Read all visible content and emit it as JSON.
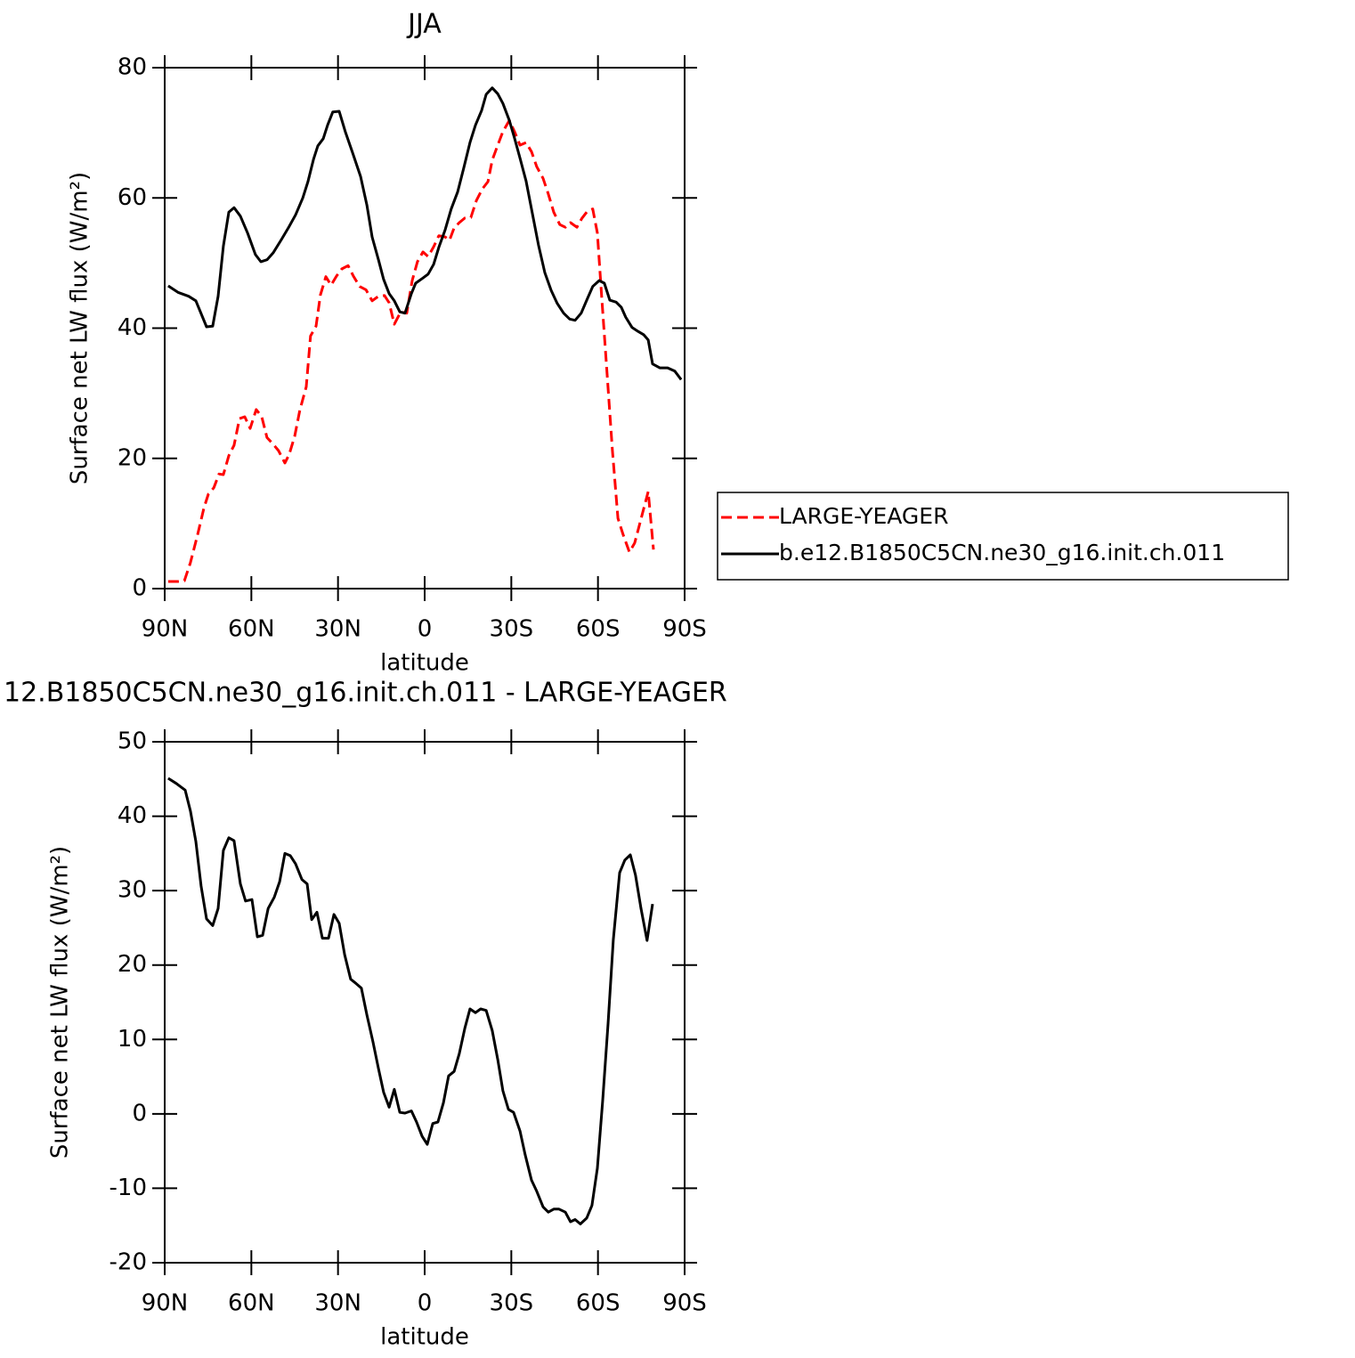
{
  "chart_data": [
    {
      "type": "line",
      "title": "JJA",
      "x_label": "latitude",
      "y_label": "Surface net LW flux (W/m²)",
      "xlim": [
        90,
        -90
      ],
      "xticks": [
        {
          "value": 90,
          "label": "90N"
        },
        {
          "value": 60,
          "label": "60N"
        },
        {
          "value": 30,
          "label": "30N"
        },
        0,
        {
          "value": -30,
          "label": "30S"
        },
        {
          "value": -60,
          "label": "60S"
        },
        {
          "value": -90,
          "label": "90S"
        }
      ],
      "ylim": [
        0,
        80
      ],
      "yticks": [
        0,
        20,
        40,
        60,
        80
      ],
      "legend": "right",
      "series": [
        {
          "name": "LARGE-YEAGER",
          "color": "#ff0000",
          "dash": "dashed",
          "x": [
            88.8,
            85.4,
            83.2,
            81.1,
            78.6,
            76.4,
            74.9,
            73.0,
            71.2,
            69.7,
            67.8,
            66.0,
            64.1,
            62.3,
            60.4,
            58.3,
            56.4,
            54.6,
            52.7,
            50.6,
            48.4,
            46.9,
            45.0,
            43.2,
            41.0,
            39.5,
            37.6,
            36.1,
            34.2,
            32.4,
            30.5,
            28.7,
            26.5,
            24.7,
            22.5,
            20.3,
            18.2,
            16.0,
            13.9,
            12.3,
            10.5,
            8.3,
            6.2,
            4.3,
            2.5,
            0.6,
            -1.2,
            -3.1,
            -4.9,
            -7.1,
            -8.6,
            -10.2,
            -12.0,
            -13.9,
            -16.0,
            -17.9,
            -20.0,
            -21.9,
            -23.4,
            -25.3,
            -27.1,
            -29.3,
            -31.1,
            -33.0,
            -35.1,
            -37.0,
            -38.8,
            -41.0,
            -42.8,
            -44.7,
            -46.8,
            -48.7,
            -50.5,
            -52.7,
            -54.5,
            -56.4,
            -58.2,
            -59.8,
            -61.3,
            -63.2,
            -65.0,
            -66.9,
            -68.7,
            -70.9,
            -72.7,
            -74.3,
            -75.8,
            -77.4,
            -79.2
          ],
          "values": [
            1.1,
            1.1,
            1.2,
            4.0,
            8.3,
            12.4,
            14.5,
            15.5,
            17.6,
            17.5,
            20.4,
            22.0,
            26.1,
            26.4,
            24.6,
            27.5,
            26.4,
            23.2,
            22.3,
            21.2,
            19.3,
            20.6,
            23.4,
            27.4,
            31.0,
            38.8,
            40.3,
            45.1,
            47.9,
            46.6,
            48.0,
            49.1,
            49.6,
            48.0,
            46.4,
            45.9,
            44.2,
            44.9,
            45.0,
            43.9,
            40.6,
            42.5,
            42.3,
            47.3,
            50.2,
            51.7,
            51.0,
            52.5,
            54.2,
            54.0,
            53.5,
            55.4,
            56.2,
            56.9,
            57.0,
            59.6,
            61.4,
            62.5,
            65.8,
            68.1,
            70.2,
            71.9,
            70.2,
            68.1,
            68.5,
            67.1,
            64.8,
            63.0,
            60.6,
            57.8,
            55.9,
            55.5,
            56.2,
            55.5,
            56.9,
            58.0,
            58.3,
            54.6,
            44.7,
            32.8,
            21.2,
            10.8,
            8.3,
            5.6,
            7.0,
            9.7,
            12.2,
            14.9,
            6.0
          ]
        },
        {
          "name": "b.e12.B1850C5CN.ne30_g16.init.ch.011",
          "color": "#000000",
          "dash": "solid",
          "x": [
            88.8,
            85.4,
            81.7,
            79.2,
            75.5,
            73.4,
            71.5,
            69.7,
            67.8,
            66.0,
            63.8,
            61.3,
            58.6,
            56.7,
            54.6,
            52.4,
            49.6,
            47.2,
            44.7,
            42.2,
            40.4,
            38.5,
            37.0,
            35.1,
            33.6,
            31.8,
            29.6,
            27.5,
            25.0,
            22.2,
            20.0,
            18.2,
            16.0,
            14.2,
            12.3,
            10.5,
            8.6,
            6.8,
            4.6,
            3.1,
            0.6,
            -1.2,
            -3.1,
            -4.9,
            -7.1,
            -9.2,
            -11.4,
            -13.6,
            -15.7,
            -17.6,
            -19.7,
            -21.3,
            -23.4,
            -25.3,
            -27.1,
            -29.3,
            -31.1,
            -33.0,
            -35.1,
            -37.3,
            -39.4,
            -41.6,
            -43.8,
            -45.9,
            -48.1,
            -50.2,
            -52.1,
            -54.2,
            -56.4,
            -58.2,
            -60.4,
            -62.2,
            -64.1,
            -66.3,
            -68.1,
            -69.6,
            -71.8,
            -73.9,
            -75.8,
            -77.4,
            -78.9,
            -81.4,
            -84.1,
            -86.6,
            -88.8
          ],
          "values": [
            46.5,
            45.5,
            44.9,
            44.2,
            40.2,
            40.3,
            44.9,
            52.6,
            57.8,
            58.5,
            57.2,
            54.6,
            51.3,
            50.2,
            50.5,
            51.6,
            53.6,
            55.4,
            57.4,
            60.0,
            62.5,
            65.9,
            68.0,
            69.1,
            71.2,
            73.2,
            73.3,
            70.2,
            67.0,
            63.3,
            58.9,
            54.0,
            50.5,
            47.5,
            45.3,
            44.2,
            42.5,
            42.3,
            45.3,
            46.9,
            47.7,
            48.3,
            49.8,
            52.4,
            55.1,
            58.3,
            60.9,
            64.7,
            68.5,
            71.2,
            73.4,
            75.9,
            76.9,
            76.0,
            74.5,
            71.9,
            69.2,
            66.1,
            62.6,
            57.6,
            52.8,
            48.5,
            45.8,
            43.8,
            42.3,
            41.4,
            41.2,
            42.3,
            44.6,
            46.4,
            47.3,
            46.9,
            44.3,
            44.0,
            43.2,
            41.7,
            40.1,
            39.5,
            39.0,
            38.2,
            34.5,
            33.9,
            33.9,
            33.4,
            32.1
          ]
        }
      ]
    },
    {
      "type": "line",
      "title": "12.B1850C5CN.ne30_g16.init.ch.011 - LARGE-YEAGER",
      "x_label": "latitude",
      "y_label": "Surface net LW flux (W/m²)",
      "xlim": [
        90,
        -90
      ],
      "xticks": [
        {
          "value": 90,
          "label": "90N"
        },
        {
          "value": 60,
          "label": "60N"
        },
        {
          "value": 30,
          "label": "30N"
        },
        0,
        {
          "value": -30,
          "label": "30S"
        },
        {
          "value": -60,
          "label": "60S"
        },
        {
          "value": -90,
          "label": "90S"
        }
      ],
      "ylim": [
        -20,
        50
      ],
      "yticks": [
        -20,
        -10,
        0,
        10,
        20,
        30,
        40,
        50
      ],
      "series": [
        {
          "color": "#000000",
          "dash": "solid",
          "x": [
            88.8,
            86.0,
            82.9,
            81.1,
            79.2,
            77.4,
            75.5,
            73.4,
            71.5,
            69.7,
            67.8,
            66.0,
            63.8,
            62.0,
            59.8,
            57.9,
            56.1,
            54.2,
            52.1,
            50.2,
            48.4,
            46.5,
            44.7,
            42.5,
            40.7,
            39.1,
            37.3,
            35.4,
            33.3,
            31.4,
            29.6,
            27.7,
            25.6,
            23.7,
            21.9,
            20.0,
            17.9,
            16.0,
            14.2,
            12.3,
            10.5,
            8.6,
            6.8,
            4.6,
            2.8,
            0.9,
            -0.9,
            -2.8,
            -4.6,
            -6.5,
            -8.3,
            -10.2,
            -12.0,
            -13.9,
            -15.7,
            -17.6,
            -19.4,
            -21.3,
            -23.4,
            -25.3,
            -27.1,
            -29.0,
            -30.8,
            -33.0,
            -34.8,
            -37.0,
            -38.8,
            -41.0,
            -42.8,
            -44.7,
            -46.5,
            -48.7,
            -50.5,
            -52.1,
            -53.9,
            -56.1,
            -57.9,
            -59.8,
            -61.6,
            -63.5,
            -65.3,
            -67.5,
            -69.3,
            -71.2,
            -73.0,
            -74.9,
            -77.0,
            -78.9
          ],
          "values": [
            45.1,
            44.4,
            43.5,
            40.7,
            36.6,
            30.6,
            26.2,
            25.3,
            27.6,
            35.4,
            37.1,
            36.7,
            30.9,
            28.6,
            28.8,
            23.8,
            24.0,
            27.6,
            29.1,
            31.2,
            35.0,
            34.7,
            33.6,
            31.5,
            30.9,
            26.1,
            27.1,
            23.6,
            23.6,
            26.8,
            25.6,
            21.4,
            18.1,
            17.5,
            16.9,
            13.3,
            9.7,
            6.1,
            2.9,
            0.9,
            3.3,
            0.2,
            0.1,
            0.4,
            -1.1,
            -3.0,
            -4.1,
            -1.3,
            -1.1,
            1.5,
            5.1,
            5.7,
            8.1,
            11.5,
            14.1,
            13.6,
            14.1,
            13.9,
            11.2,
            7.3,
            3.1,
            0.6,
            0.2,
            -2.3,
            -5.5,
            -8.9,
            -10.4,
            -12.5,
            -13.2,
            -12.8,
            -12.8,
            -13.2,
            -14.5,
            -14.2,
            -14.8,
            -14.0,
            -12.3,
            -7.3,
            1.7,
            12.1,
            23.4,
            32.4,
            34.1,
            34.8,
            32.1,
            27.6,
            23.3,
            28.2
          ]
        }
      ]
    }
  ]
}
